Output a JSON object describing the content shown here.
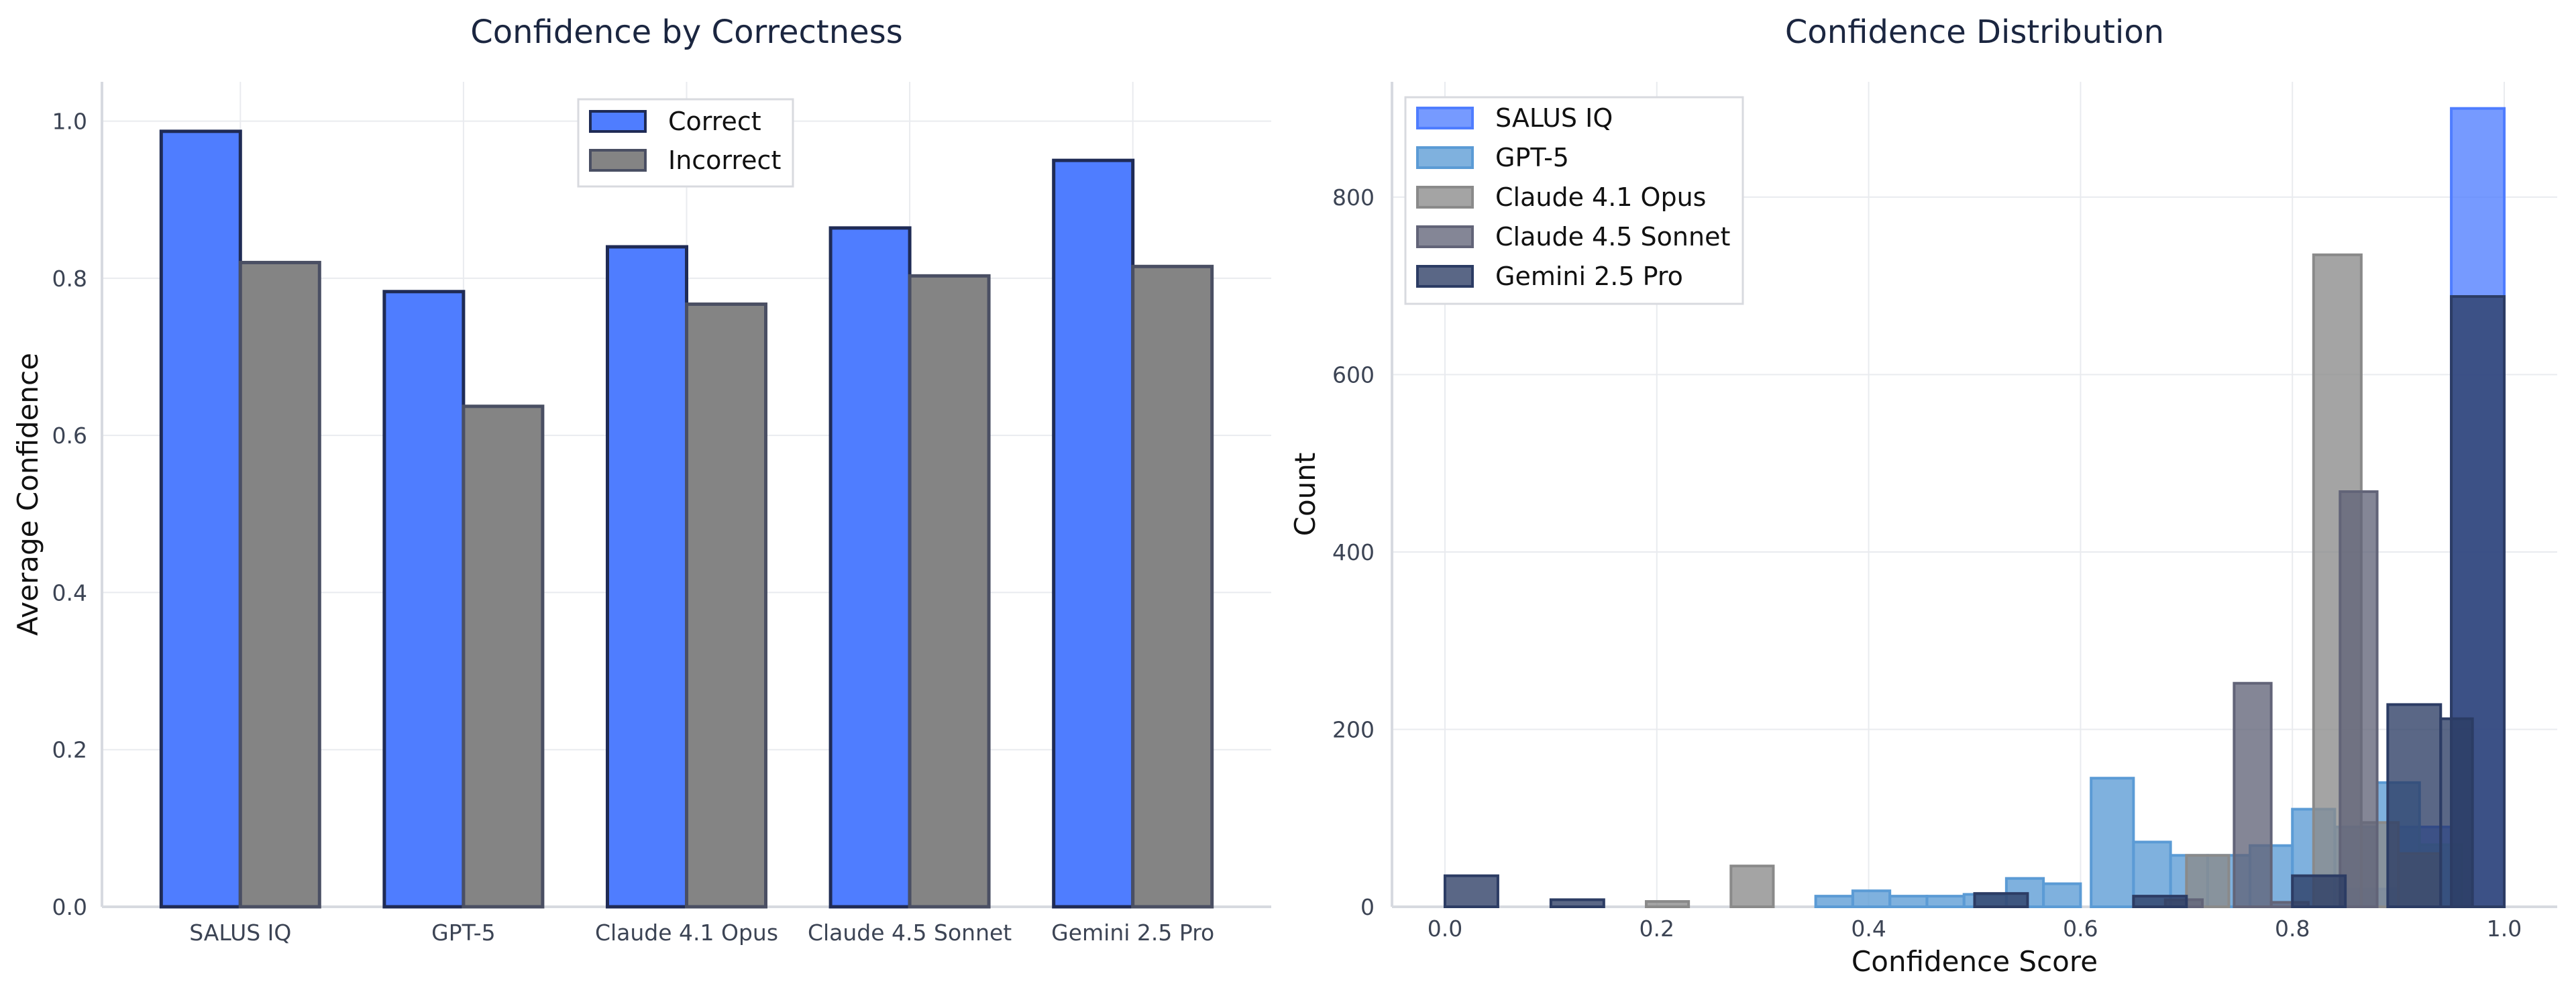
{
  "chart_data": [
    {
      "type": "bar",
      "title": "Confidence by Correctness",
      "xlabel": "",
      "ylabel": "Average Confidence",
      "categories": [
        "SALUS IQ",
        "GPT-5",
        "Claude 4.1 Opus",
        "Claude 4.5 Sonnet",
        "Gemini 2.5 Pro"
      ],
      "series": [
        {
          "name": "Correct",
          "values": [
            0.987,
            0.783,
            0.84,
            0.864,
            0.95
          ],
          "color": "#4f7dff"
        },
        {
          "name": "Incorrect",
          "values": [
            0.82,
            0.637,
            0.767,
            0.803,
            0.815
          ],
          "color": "#848484"
        }
      ],
      "ylim": [
        0,
        1.05
      ],
      "yticks": [
        "0.0",
        "0.2",
        "0.4",
        "0.6",
        "0.8",
        "1.0"
      ],
      "grid": true,
      "legend": "top-center"
    },
    {
      "type": "histogram",
      "title": "Confidence Distribution",
      "xlabel": "Confidence Score",
      "ylabel": "Count",
      "xlim": [
        -0.05,
        1.05
      ],
      "ylim": [
        0,
        930
      ],
      "xticks": [
        "0.0",
        "0.2",
        "0.4",
        "0.6",
        "0.8",
        "1.0"
      ],
      "yticks": [
        "0",
        "200",
        "400",
        "600",
        "800"
      ],
      "grid": true,
      "legend": "top-left",
      "series": [
        {
          "name": "SALUS IQ",
          "color": "#4f7dff",
          "opacity": 0.78,
          "bins": [
            [
              0.95,
              1.0,
              900
            ],
            [
              0.9,
              0.95,
              90
            ],
            [
              0.85,
              0.9,
              20
            ]
          ]
        },
        {
          "name": "GPT-5",
          "color": "#5b9bd5",
          "opacity": 0.78,
          "bins": [
            [
              0.35,
              0.385,
              12
            ],
            [
              0.385,
              0.42,
              18
            ],
            [
              0.42,
              0.455,
              12
            ],
            [
              0.455,
              0.49,
              12
            ],
            [
              0.49,
              0.53,
              14
            ],
            [
              0.53,
              0.565,
              32
            ],
            [
              0.565,
              0.6,
              26
            ],
            [
              0.61,
              0.65,
              145
            ],
            [
              0.65,
              0.685,
              73
            ],
            [
              0.685,
              0.72,
              58
            ],
            [
              0.72,
              0.76,
              58
            ],
            [
              0.76,
              0.8,
              69
            ],
            [
              0.8,
              0.84,
              110
            ],
            [
              0.84,
              0.88,
              90
            ],
            [
              0.88,
              0.92,
              140
            ],
            [
              0.92,
              0.96,
              70
            ]
          ]
        },
        {
          "name": "Claude 4.1 Opus",
          "color": "#8a8a8a",
          "opacity": 0.78,
          "bins": [
            [
              0.27,
              0.31,
              46
            ],
            [
              0.19,
              0.23,
              6
            ],
            [
              0.7,
              0.74,
              58
            ],
            [
              0.82,
              0.865,
              735
            ],
            [
              0.865,
              0.9,
              95
            ],
            [
              0.9,
              0.94,
              60
            ]
          ]
        },
        {
          "name": "Claude 4.5 Sonnet",
          "color": "#626478",
          "opacity": 0.78,
          "bins": [
            [
              0.745,
              0.78,
              252
            ],
            [
              0.845,
              0.88,
              468
            ],
            [
              0.78,
              0.815,
              5
            ],
            [
              0.68,
              0.715,
              8
            ]
          ]
        },
        {
          "name": "Gemini 2.5 Pro",
          "color": "#2c3c64",
          "opacity": 0.78,
          "bins": [
            [
              0.0,
              0.05,
              35
            ],
            [
              0.1,
              0.15,
              8
            ],
            [
              0.5,
              0.55,
              15
            ],
            [
              0.65,
              0.7,
              12
            ],
            [
              0.8,
              0.85,
              35
            ],
            [
              0.89,
              0.94,
              228
            ],
            [
              0.94,
              0.97,
              212
            ],
            [
              0.95,
              1.0,
              688
            ]
          ]
        }
      ]
    }
  ]
}
